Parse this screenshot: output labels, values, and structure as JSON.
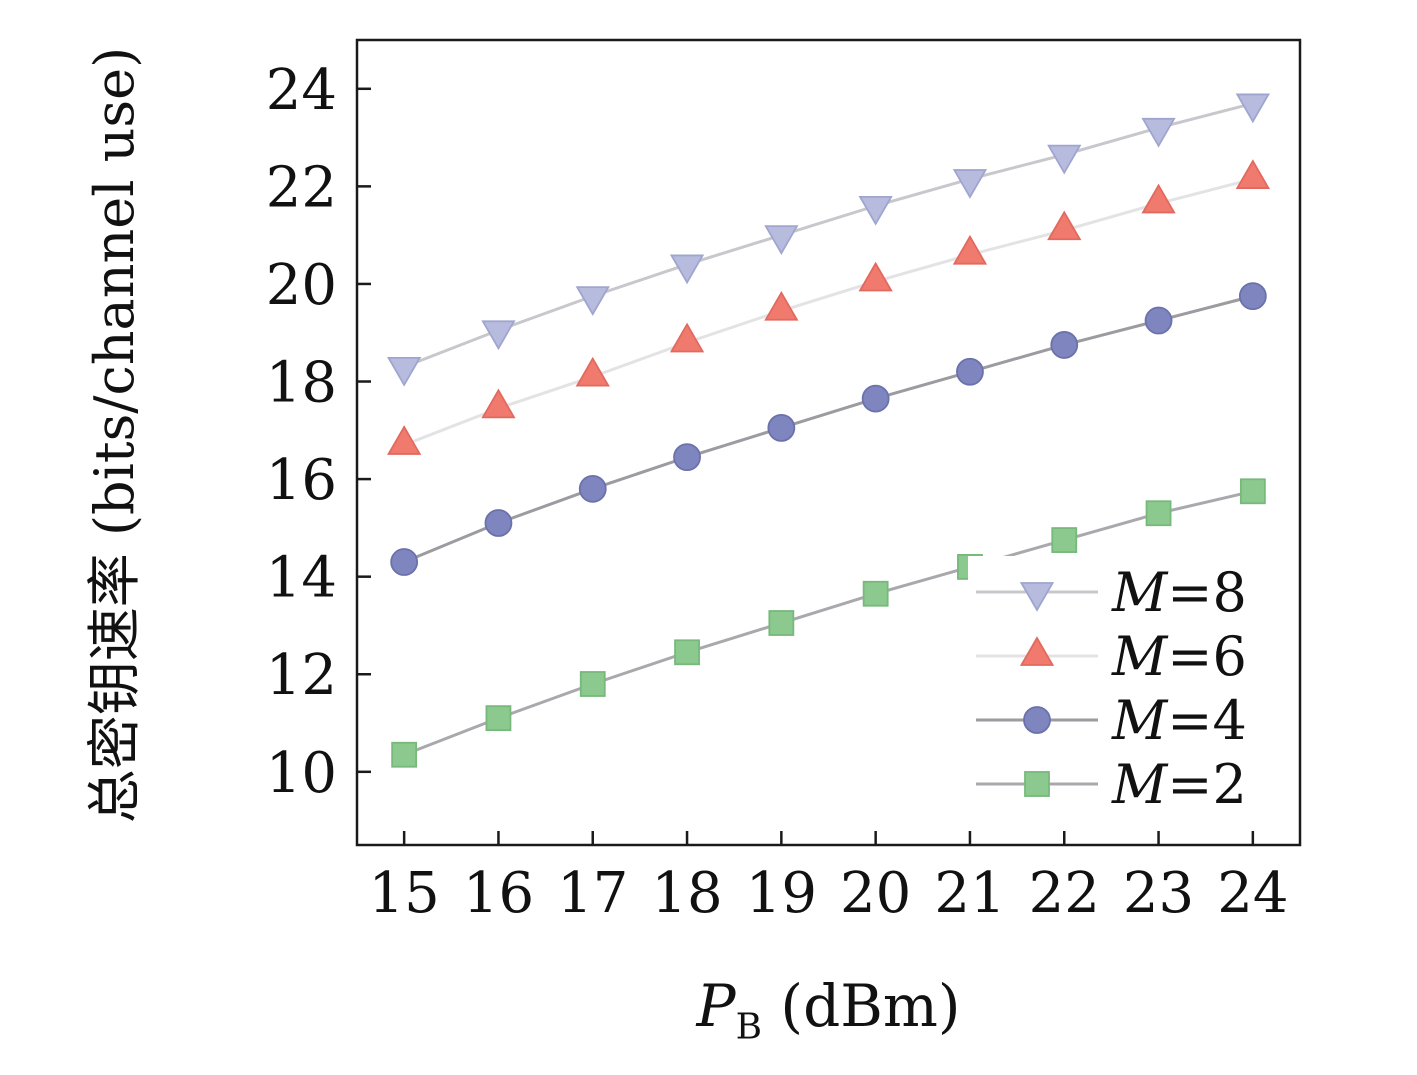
{
  "figure": {
    "ylabel": "总密钥速率 (bits/channel use)",
    "xlabel": {
      "var": "P",
      "sub": "B",
      "rest": " (dBm)"
    },
    "frame_color": "#1a1a1a",
    "background": "#ffffff"
  },
  "chart_data": {
    "type": "line",
    "title": "",
    "xlabel": "P_B (dBm)",
    "ylabel": "总密钥速率 (bits/channel use)",
    "x": [
      15,
      16,
      17,
      18,
      19,
      20,
      21,
      22,
      23,
      24
    ],
    "x_ticks": [
      15,
      16,
      17,
      18,
      19,
      20,
      21,
      22,
      23,
      24
    ],
    "y_ticks": [
      10,
      12,
      14,
      16,
      18,
      20,
      22,
      24
    ],
    "xlim": [
      14.5,
      24.5
    ],
    "ylim": [
      8.5,
      25
    ],
    "grid": false,
    "legend_position": "lower right",
    "series": [
      {
        "name": "M=8",
        "label_var": "M",
        "label_rest": "=8",
        "marker": "triangle-down",
        "marker_color": "#b7bcde",
        "marker_edge": "#9fa5cf",
        "line_color": "#c8c8cc",
        "values": [
          18.3,
          19.05,
          19.75,
          20.4,
          21.0,
          21.6,
          22.15,
          22.65,
          23.2,
          23.7
        ]
      },
      {
        "name": "M=6",
        "label_var": "M",
        "label_rest": "=6",
        "marker": "triangle-up",
        "marker_color": "#f07a6e",
        "marker_edge": "#e2695e",
        "line_color": "#e3e3e5",
        "values": [
          16.7,
          17.45,
          18.1,
          18.8,
          19.45,
          20.05,
          20.6,
          21.1,
          21.65,
          22.15
        ]
      },
      {
        "name": "M=4",
        "label_var": "M",
        "label_rest": "=4",
        "marker": "circle",
        "marker_color": "#7e85bf",
        "marker_edge": "#6b72ab",
        "line_color": "#9b9ba0",
        "values": [
          14.3,
          15.1,
          15.8,
          16.45,
          17.05,
          17.65,
          18.2,
          18.75,
          19.25,
          19.75
        ]
      },
      {
        "name": "M=2",
        "label_var": "M",
        "label_rest": "=2",
        "marker": "square",
        "marker_color": "#8cc98f",
        "marker_edge": "#77b87b",
        "line_color": "#a9a9ad",
        "values": [
          10.35,
          11.1,
          11.8,
          12.45,
          13.05,
          13.65,
          14.2,
          14.75,
          15.3,
          15.75
        ]
      }
    ]
  }
}
